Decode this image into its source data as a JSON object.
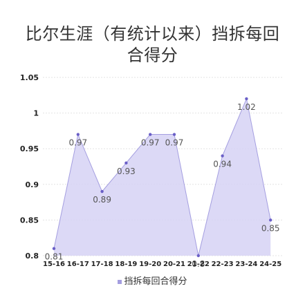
{
  "chart_data": {
    "type": "area",
    "title_line1": "比尔生涯（有统计以来）挡拆每回",
    "title_line2": "合得分",
    "categories": [
      "15-16",
      "16-17",
      "17-18",
      "18-19",
      "19-20",
      "20-21",
      "21-22",
      "22-23",
      "23-24",
      "24-25"
    ],
    "series": [
      {
        "name": "挡拆每回合得分",
        "values": [
          0.81,
          0.97,
          0.89,
          0.93,
          0.97,
          0.97,
          0.8,
          0.94,
          1.02,
          0.85
        ],
        "labels": [
          "0.81",
          "0.97",
          "0.89",
          "0.93",
          "0.97",
          "0.97",
          "0.8",
          "0.94",
          "1.02",
          "0.85"
        ]
      }
    ],
    "ylim": [
      0.8,
      1.05
    ],
    "yticks": [
      0.8,
      0.85,
      0.9,
      0.95,
      1,
      1.05
    ],
    "ytick_labels": [
      "0.8",
      "0.85",
      "0.9",
      "0.95",
      "1",
      "1.05"
    ],
    "grid": true,
    "legend_position": "bottom",
    "colors": {
      "fill": "#d6d2f5",
      "line": "#a49ee0",
      "marker": "#6a5fc7",
      "grid": "#e3e3e3"
    }
  }
}
